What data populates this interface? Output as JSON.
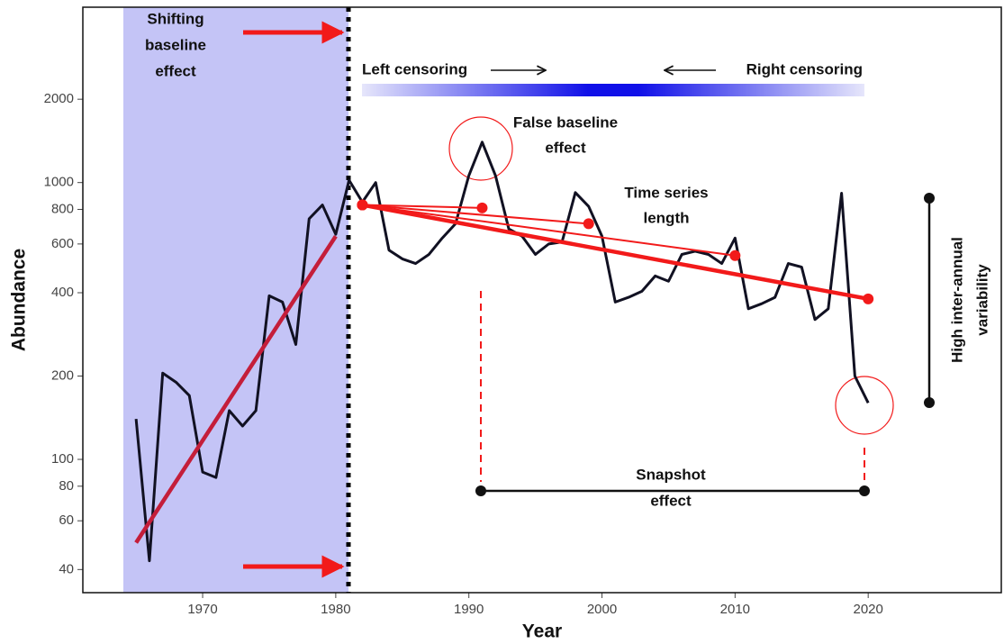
{
  "chart_data": {
    "type": "line",
    "x_label": "Year",
    "y_label": "Abundance",
    "xlim": [
      1961,
      2030
    ],
    "xticks": [
      1970,
      1980,
      1990,
      2000,
      2010,
      2020
    ],
    "ylim": [
      33,
      4300
    ],
    "yticks": [
      40,
      60,
      80,
      100,
      200,
      400,
      600,
      800,
      1000,
      2000
    ],
    "log_y": true,
    "grid": false,
    "series": [
      {
        "color": "#111122",
        "x": [
          1965,
          1966,
          1967,
          1968,
          1969,
          1970,
          1971,
          1972,
          1973,
          1974,
          1975,
          1976,
          1977,
          1978,
          1979,
          1980,
          1981,
          1982,
          1983,
          1984,
          1985,
          1986,
          1987,
          1988,
          1989,
          1990,
          1991,
          1992,
          1993,
          1994,
          1995,
          1996,
          1997,
          1998,
          1999,
          2000,
          2001,
          2002,
          2003,
          2004,
          2005,
          2006,
          2007,
          2008,
          2009,
          2010,
          2011,
          2012,
          2013,
          2014,
          2015,
          2016,
          2017,
          2018,
          2019,
          2020
        ],
        "values": [
          140,
          43,
          205,
          190,
          170,
          90,
          86,
          150,
          132,
          150,
          390,
          370,
          260,
          740,
          830,
          650,
          1020,
          850,
          1000,
          570,
          530,
          510,
          550,
          630,
          710,
          1060,
          1400,
          1060,
          680,
          640,
          550,
          600,
          610,
          920,
          820,
          640,
          370,
          385,
          405,
          460,
          440,
          550,
          565,
          550,
          510,
          630,
          350,
          365,
          385,
          510,
          495,
          320,
          350,
          915,
          200,
          160
        ]
      }
    ],
    "trend_lines": [
      {
        "color": "#c41e3a",
        "markers": false,
        "x": [
          1965,
          1980
        ],
        "values": [
          50,
          640
        ]
      },
      {
        "color": "#f21a1a",
        "markers": true,
        "x": [
          1982,
          1991
        ],
        "values": [
          830,
          810
        ]
      },
      {
        "color": "#f21a1a",
        "markers": true,
        "x": [
          1982,
          1999
        ],
        "values": [
          830,
          710
        ]
      },
      {
        "color": "#f21a1a",
        "markers": true,
        "x": [
          1982,
          2010
        ],
        "values": [
          830,
          545
        ]
      },
      {
        "color": "#f21a1a",
        "markers": true,
        "x": [
          1982,
          2020
        ],
        "values": [
          830,
          380
        ]
      }
    ],
    "annotations": [
      [
        "Shifting",
        "baseline",
        "effect"
      ],
      [
        "Left censoring"
      ],
      [
        "Right censoring"
      ],
      [
        "False baseline",
        "effect"
      ],
      [
        "Time series",
        "length"
      ],
      [
        "Snapshot",
        "effect"
      ],
      [
        "High inter-annual",
        "variability"
      ]
    ]
  }
}
